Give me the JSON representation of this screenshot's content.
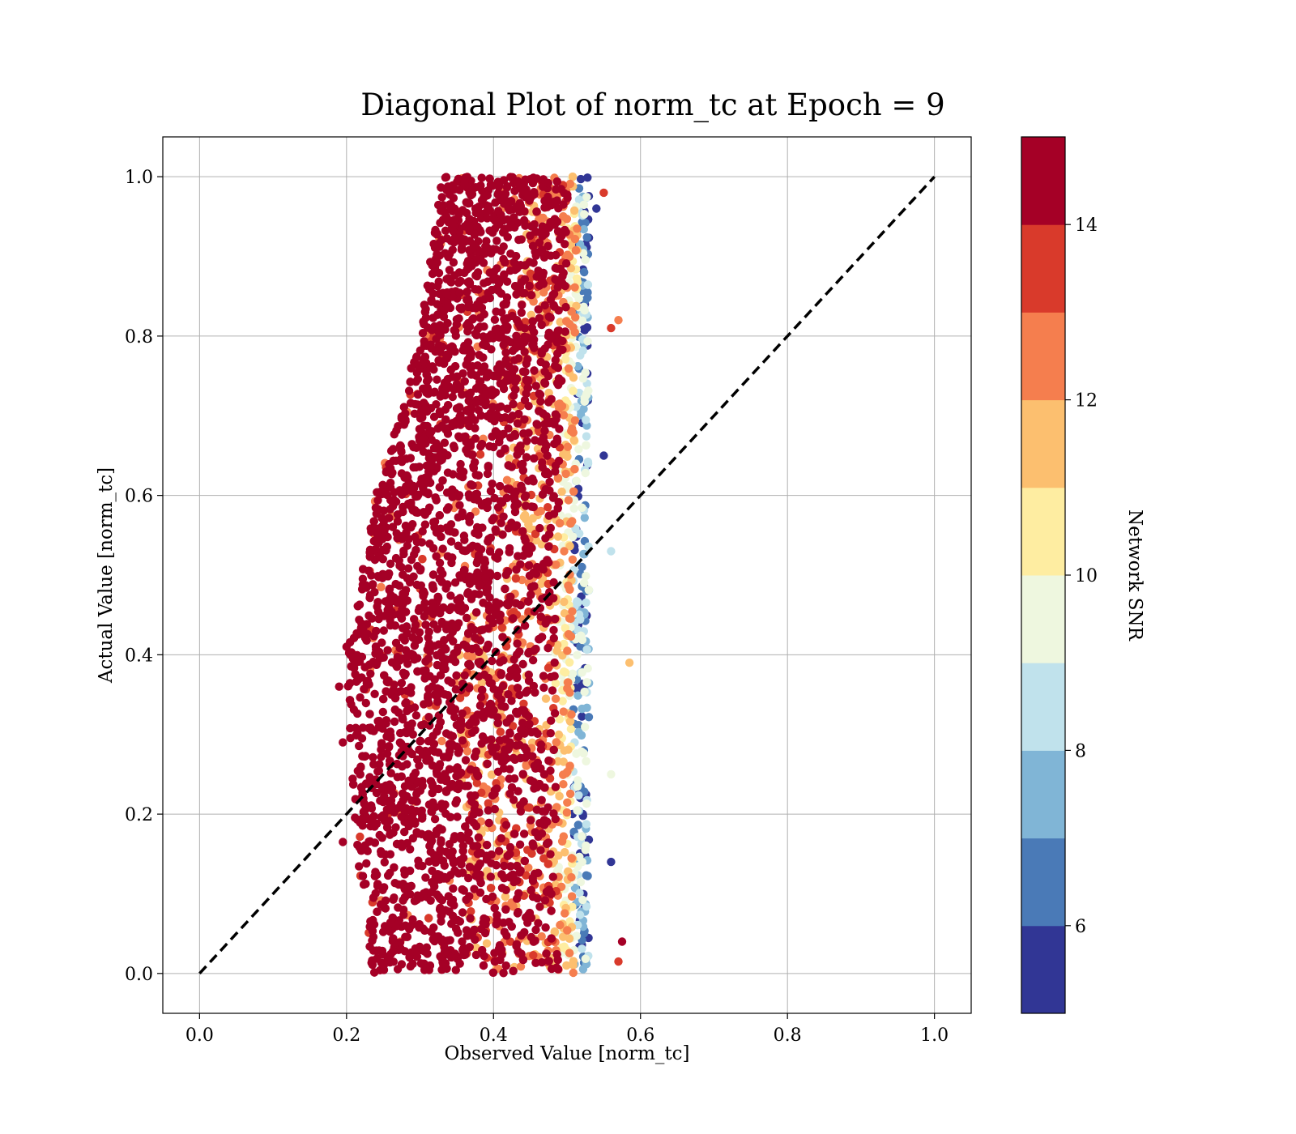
{
  "chart_data": {
    "type": "scatter",
    "title": "Diagonal Plot of norm_tc at Epoch = 9",
    "xlabel": "Observed Value [norm_tc]",
    "ylabel": "Actual Value [norm_tc]",
    "xlim": [
      -0.05,
      1.05
    ],
    "ylim": [
      -0.05,
      1.05
    ],
    "x_ticks": [
      "0.0",
      "0.2",
      "0.4",
      "0.6",
      "0.8",
      "1.0"
    ],
    "y_ticks": [
      "0.0",
      "0.2",
      "0.4",
      "0.6",
      "0.8",
      "1.0"
    ],
    "grid": true,
    "diagonal_line": {
      "x": [
        0.0,
        1.0
      ],
      "y": [
        0.0,
        1.0
      ],
      "style": "dashed",
      "color": "#000000"
    },
    "colorbar": {
      "label": "Network SNR",
      "range": [
        5,
        15
      ],
      "ticks": [
        "6",
        "8",
        "10",
        "12",
        "14"
      ],
      "levels": [
        {
          "from": 5,
          "to": 6,
          "color": "#313695"
        },
        {
          "from": 6,
          "to": 7,
          "color": "#4a7ab7"
        },
        {
          "from": 7,
          "to": 8,
          "color": "#80b5d6"
        },
        {
          "from": 8,
          "to": 9,
          "color": "#c0e2ec"
        },
        {
          "from": 9,
          "to": 10,
          "color": "#eef7df"
        },
        {
          "from": 10,
          "to": 11,
          "color": "#feeda1"
        },
        {
          "from": 11,
          "to": 12,
          "color": "#fcbf6f"
        },
        {
          "from": 12,
          "to": 13,
          "color": "#f57e4e"
        },
        {
          "from": 13,
          "to": 14,
          "color": "#d93a2b"
        },
        {
          "from": 14,
          "to": 15,
          "color": "#a50026"
        }
      ]
    },
    "points_summary": {
      "x_range_by_y": [
        {
          "y": 0.0,
          "x_min": 0.23,
          "x_max": 0.53
        },
        {
          "y": 0.2,
          "x_min": 0.21,
          "x_max": 0.53
        },
        {
          "y": 0.4,
          "x_min": 0.2,
          "x_max": 0.53
        },
        {
          "y": 0.6,
          "x_min": 0.24,
          "x_max": 0.53
        },
        {
          "y": 0.8,
          "x_min": 0.3,
          "x_max": 0.53
        },
        {
          "y": 1.0,
          "x_min": 0.33,
          "x_max": 0.53
        }
      ],
      "dominant_snr": 15
    },
    "outliers": [
      {
        "x": 0.55,
        "y": 0.98,
        "snr": 13
      },
      {
        "x": 0.54,
        "y": 0.96,
        "snr": 5
      },
      {
        "x": 0.57,
        "y": 0.82,
        "snr": 12
      },
      {
        "x": 0.56,
        "y": 0.81,
        "snr": 13.5
      },
      {
        "x": 0.55,
        "y": 0.65,
        "snr": 5
      },
      {
        "x": 0.56,
        "y": 0.53,
        "snr": 8
      },
      {
        "x": 0.585,
        "y": 0.39,
        "snr": 11
      },
      {
        "x": 0.56,
        "y": 0.25,
        "snr": 9.5
      },
      {
        "x": 0.56,
        "y": 0.14,
        "snr": 5
      },
      {
        "x": 0.575,
        "y": 0.04,
        "snr": 14.5
      },
      {
        "x": 0.57,
        "y": 0.015,
        "snr": 13.5
      },
      {
        "x": 0.19,
        "y": 0.36,
        "snr": 15
      },
      {
        "x": 0.2,
        "y": 0.41,
        "snr": 15
      },
      {
        "x": 0.195,
        "y": 0.29,
        "snr": 15
      },
      {
        "x": 0.195,
        "y": 0.165,
        "snr": 15
      }
    ]
  }
}
